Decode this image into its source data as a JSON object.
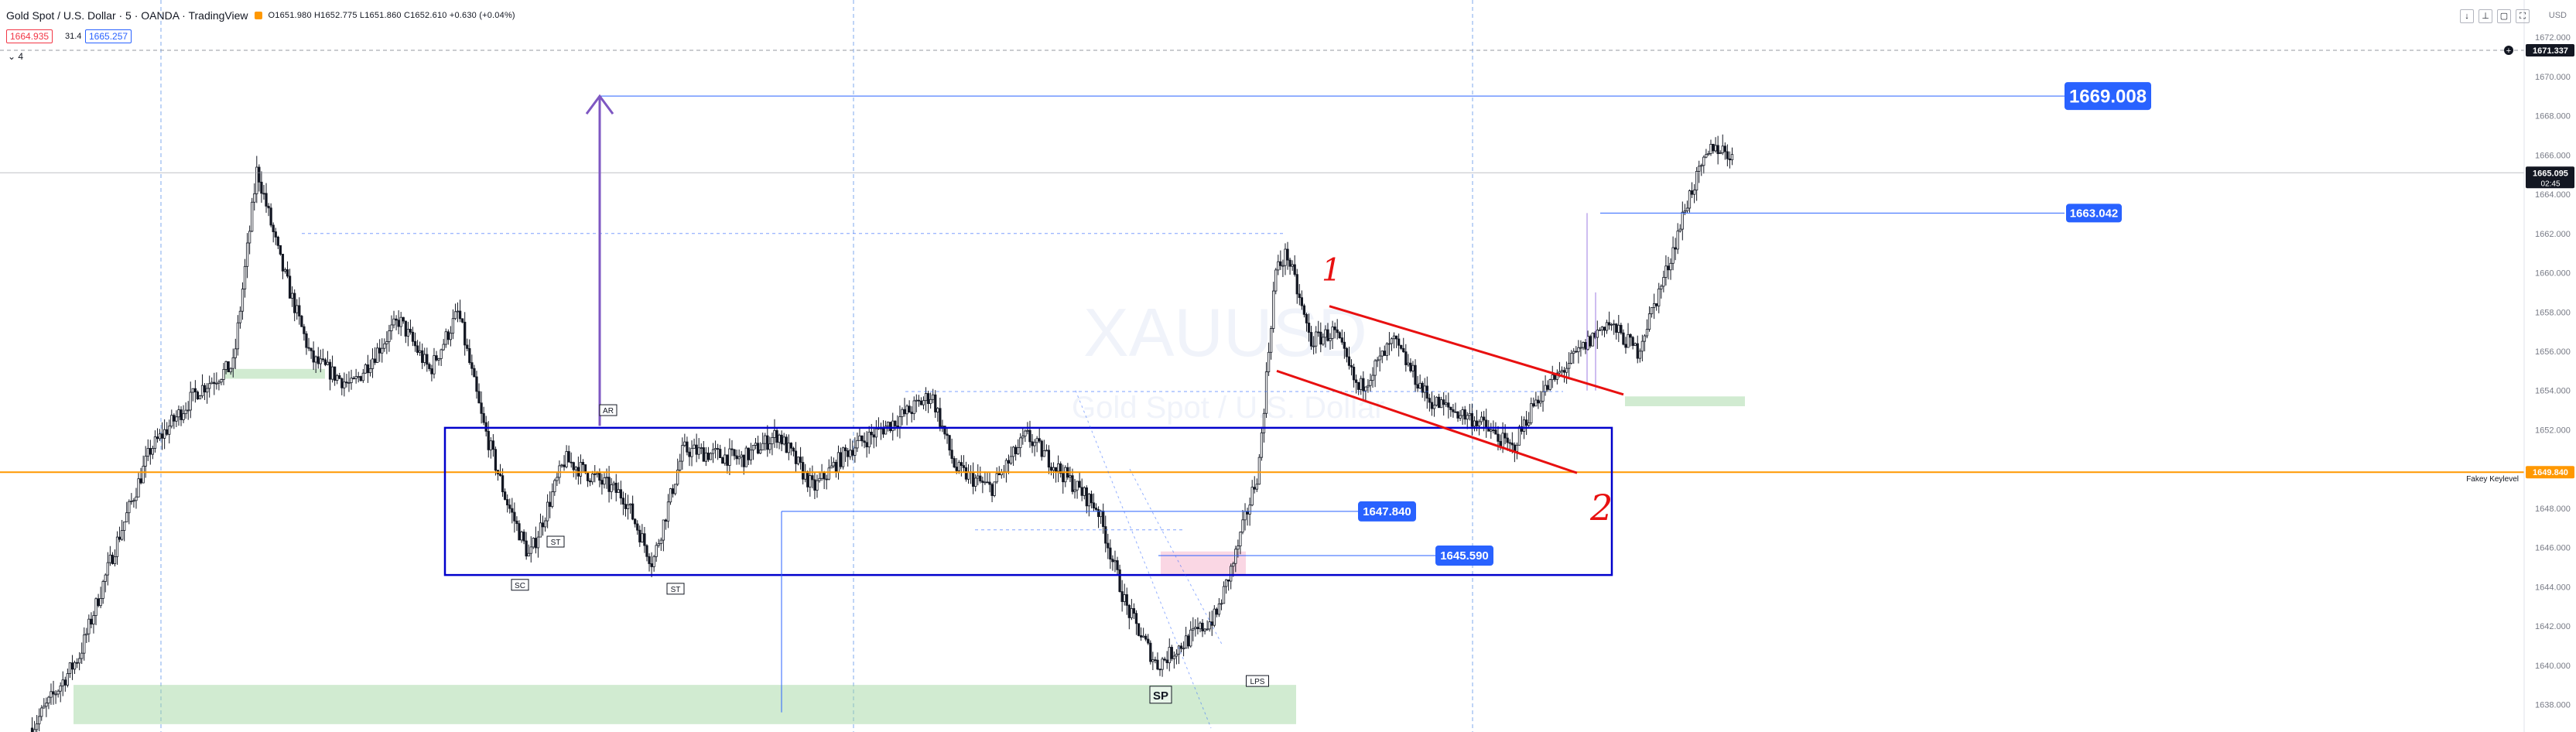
{
  "header": {
    "symbol": "Gold Spot / U.S. Dollar · 5 · OANDA · TradingView",
    "ohlc": "O1651.980 H1652.775 L1651.860 C1652.610 +0.630 (+0.04%)",
    "bid": "1664.935",
    "spread": "31.4",
    "ask": "1665.257",
    "indicators_toggle": "⌄ 4",
    "currency": "USD",
    "window_buttons": [
      "↓",
      "⊥",
      "▢",
      "⛶"
    ]
  },
  "colors": {
    "bull": "#ffffff",
    "bear": "#131722",
    "grid": "#4a86e8",
    "blue_box": "#0000cc",
    "orange": "#ff9800",
    "red": "#e81010",
    "purple": "#7e57c2",
    "label_blue": "#2962ff",
    "green_zone": "#9ad29a",
    "pink_zone": "#f4a7c3"
  },
  "chart_data": {
    "type": "candlestick",
    "symbol": "XAUUSD",
    "watermark": "XAUUSD",
    "watermark_sub": "Gold Spot / U.S. Dollar",
    "ylim": [
      1636.6,
      1673.9
    ],
    "y_ticks": [
      1672.0,
      1670.0,
      1668.0,
      1666.0,
      1664.0,
      1662.0,
      1660.0,
      1658.0,
      1656.0,
      1654.0,
      1652.0,
      1650.0,
      1648.0,
      1646.0,
      1644.0,
      1642.0,
      1640.0,
      1638.0
    ],
    "price_path": [
      [
        0,
        1636.8
      ],
      [
        0.02,
        1640.5
      ],
      [
        0.035,
        1646.0
      ],
      [
        0.05,
        1651.0
      ],
      [
        0.07,
        1654.0
      ],
      [
        0.085,
        1655.3
      ],
      [
        0.095,
        1665.3
      ],
      [
        0.105,
        1660.5
      ],
      [
        0.118,
        1655.6
      ],
      [
        0.135,
        1654.2
      ],
      [
        0.155,
        1657.6
      ],
      [
        0.168,
        1655.0
      ],
      [
        0.18,
        1658.0
      ],
      [
        0.19,
        1652.5
      ],
      [
        0.2,
        1648.5
      ],
      [
        0.21,
        1645.5
      ],
      [
        0.225,
        1650.5
      ],
      [
        0.25,
        1648.6
      ],
      [
        0.262,
        1645.2
      ],
      [
        0.275,
        1651.0
      ],
      [
        0.3,
        1650.5
      ],
      [
        0.315,
        1651.8
      ],
      [
        0.33,
        1649.0
      ],
      [
        0.345,
        1651.0
      ],
      [
        0.365,
        1652.5
      ],
      [
        0.38,
        1653.8
      ],
      [
        0.39,
        1650.0
      ],
      [
        0.405,
        1649.0
      ],
      [
        0.42,
        1651.7
      ],
      [
        0.435,
        1649.8
      ],
      [
        0.45,
        1648.0
      ],
      [
        0.462,
        1643.0
      ],
      [
        0.475,
        1640.0
      ],
      [
        0.49,
        1641.5
      ],
      [
        0.5,
        1642.5
      ],
      [
        0.508,
        1645.5
      ],
      [
        0.518,
        1650.0
      ],
      [
        0.525,
        1660.0
      ],
      [
        0.53,
        1661.0
      ],
      [
        0.54,
        1656.5
      ],
      [
        0.55,
        1657.0
      ],
      [
        0.56,
        1654.0
      ],
      [
        0.575,
        1656.5
      ],
      [
        0.59,
        1653.5
      ],
      [
        0.61,
        1652.5
      ],
      [
        0.625,
        1651.0
      ],
      [
        0.635,
        1653.5
      ],
      [
        0.65,
        1655.5
      ],
      [
        0.665,
        1657.5
      ],
      [
        0.678,
        1656.0
      ],
      [
        0.69,
        1660.0
      ],
      [
        0.7,
        1664.0
      ],
      [
        0.71,
        1666.5
      ],
      [
        0.718,
        1666.0
      ]
    ],
    "path_seed": 7,
    "candle_count": 720,
    "levels": [
      {
        "name": "top-target",
        "value": 1669.008,
        "label": "1669.008"
      },
      {
        "name": "level-1663",
        "value": 1663.042,
        "label": "1663.042"
      },
      {
        "name": "level-1647",
        "value": 1647.84,
        "label": "1647.840"
      },
      {
        "name": "level-1645",
        "value": 1645.59,
        "label": "1645.590"
      },
      {
        "name": "current-price",
        "value": 1665.095,
        "label": "1665.095",
        "countdown": "02:45"
      },
      {
        "name": "crosshair-price",
        "value": 1671.337,
        "label": "1671.337"
      },
      {
        "name": "fakey-keylevel",
        "value": 1649.84,
        "label": "1649.840",
        "title": "Fakey Keylevel"
      }
    ],
    "range_box": {
      "y_top": 1652.1,
      "y_bottom": 1644.6
    },
    "zones": [
      {
        "name": "green-zone-bottom",
        "y_top": 1639.0,
        "y_bottom": 1637.0
      },
      {
        "name": "green-zone-left",
        "y_top": 1655.1,
        "y_bottom": 1654.6
      },
      {
        "name": "green-zone-right",
        "y_top": 1653.7,
        "y_bottom": 1653.2
      },
      {
        "name": "pink-zone",
        "y_top": 1645.8,
        "y_bottom": 1644.6
      }
    ],
    "markers": [
      "AR",
      "ST",
      "SC",
      "ST",
      "SP",
      "LPS"
    ],
    "annotations": [
      "1",
      "2"
    ]
  }
}
